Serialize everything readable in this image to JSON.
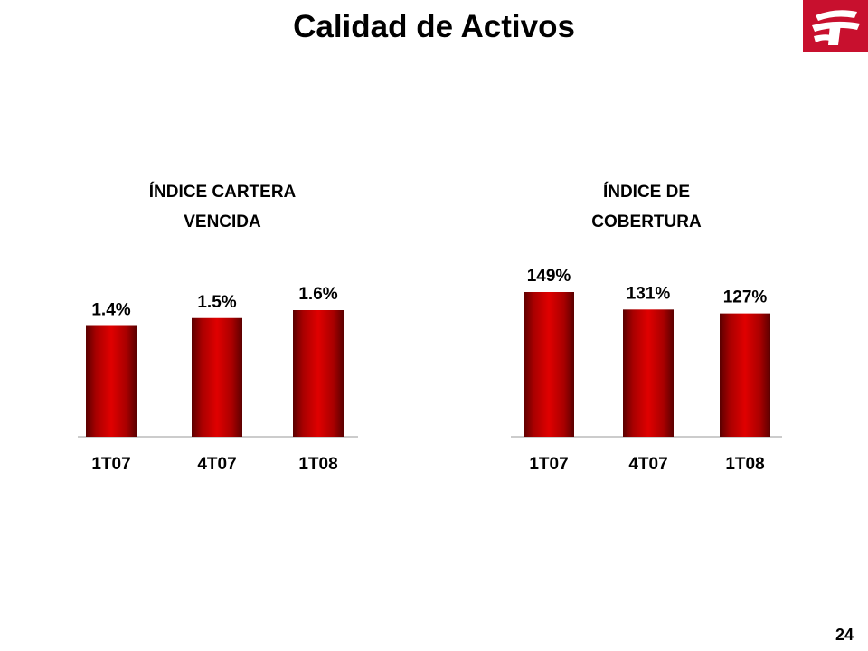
{
  "header": {
    "title": "Calidad de Activos",
    "logo_color": "#c8102e"
  },
  "footer": {
    "page_number": "24"
  },
  "chart_data": [
    {
      "type": "bar",
      "title": "ÍNDICE CARTERA VENCIDA",
      "title_lines": [
        "ÍNDICE CARTERA",
        "VENCIDA"
      ],
      "categories": [
        "1T07",
        "4T07",
        "1T08"
      ],
      "values": [
        1.4,
        1.5,
        1.6
      ],
      "value_labels": [
        "1.4%",
        "1.5%",
        "1.6%"
      ],
      "unit": "%",
      "grid": false,
      "bar_color": "#cc0000"
    },
    {
      "type": "bar",
      "title": "ÍNDICE DE COBERTURA",
      "title_lines": [
        "ÍNDICE DE",
        "COBERTURA"
      ],
      "categories": [
        "1T07",
        "4T07",
        "1T08"
      ],
      "values": [
        149,
        131,
        127
      ],
      "value_labels": [
        "149%",
        "131%",
        "127%"
      ],
      "unit": "%",
      "grid": false,
      "bar_color": "#cc0000"
    }
  ]
}
